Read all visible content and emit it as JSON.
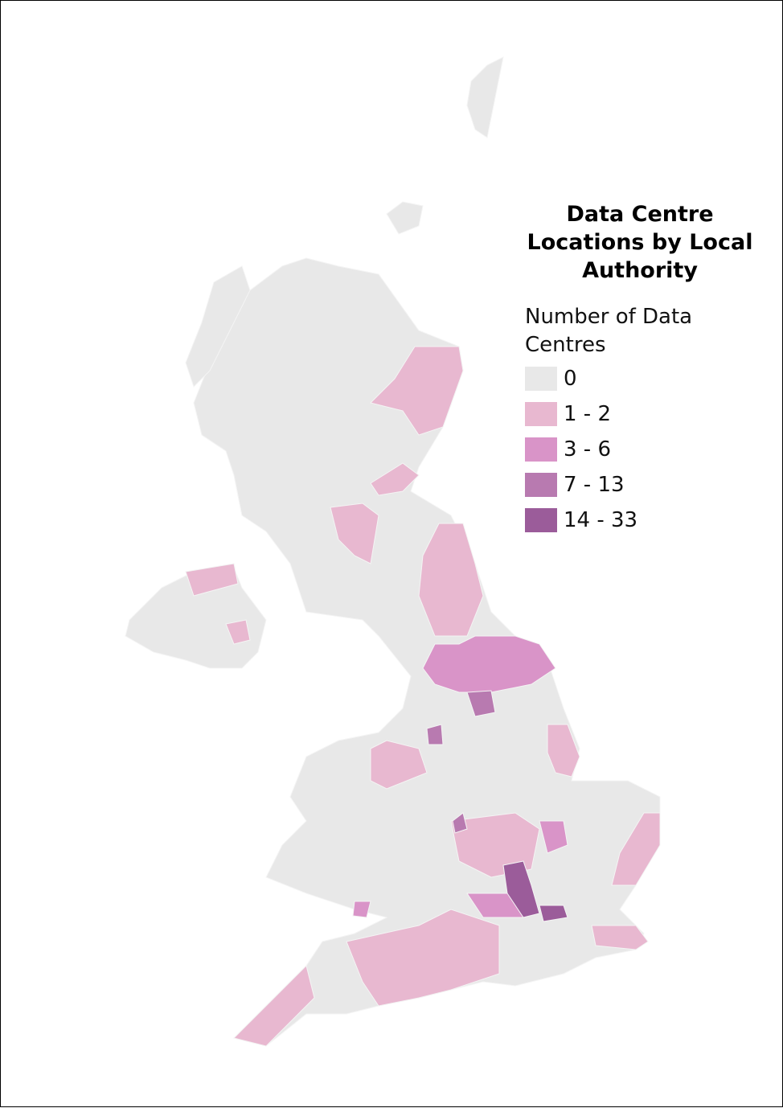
{
  "title": "Data Centre Locations by Local Authority",
  "legend": {
    "title": "Number of Data Centres",
    "items": [
      {
        "label": "0",
        "color": "#e8e8e8"
      },
      {
        "label": "1 - 2",
        "color": "#e8b8d0"
      },
      {
        "label": "3 - 6",
        "color": "#d994c8"
      },
      {
        "label": "7 - 13",
        "color": "#b87ab0"
      },
      {
        "label": "14 - 33",
        "color": "#9b5c9a"
      }
    ]
  }
}
